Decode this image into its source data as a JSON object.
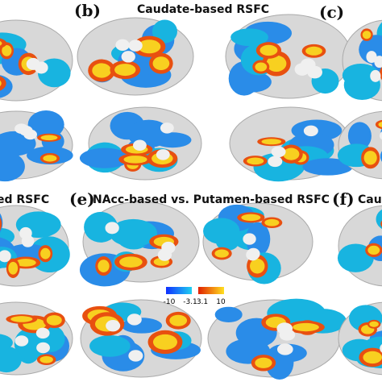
{
  "panels": {
    "top_left_label": "(b)",
    "top_title": "Caudate-based RSFC",
    "top_right_label": "(c)",
    "mid_left_title": "ed RSFC",
    "mid_label": "(e)",
    "mid_title": "NAcc-based vs. Putamen-based RSFC",
    "mid_right_label": "(f)",
    "mid_right_title": "Cauda"
  },
  "colorbar": {
    "labels": [
      "-10",
      "-3.1",
      "3.1",
      "10"
    ]
  }
}
